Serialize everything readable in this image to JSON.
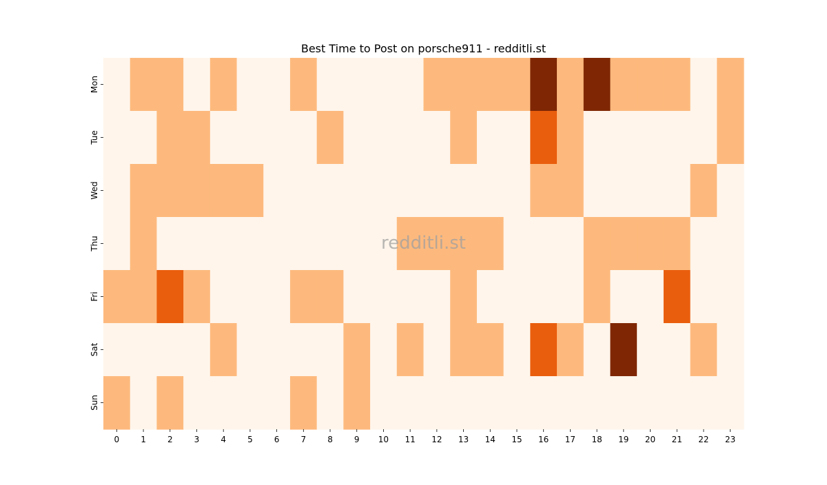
{
  "chart_data": {
    "type": "heatmap",
    "title": "Best Time to Post on porsche911 - redditli.st",
    "xlabel": "",
    "ylabel": "",
    "watermark": "redditli.st",
    "x_categories": [
      "0",
      "1",
      "2",
      "3",
      "4",
      "5",
      "6",
      "7",
      "8",
      "9",
      "10",
      "11",
      "12",
      "13",
      "14",
      "15",
      "16",
      "17",
      "18",
      "19",
      "20",
      "21",
      "22",
      "23"
    ],
    "y_categories": [
      "Mon",
      "Tue",
      "Wed",
      "Thu",
      "Fri",
      "Sat",
      "Sun"
    ],
    "values": [
      [
        0,
        1,
        1,
        0,
        1,
        0,
        0,
        1,
        0,
        0,
        0,
        0,
        1,
        1,
        1,
        1,
        3,
        1,
        3,
        1,
        1,
        1,
        0,
        1
      ],
      [
        0,
        0,
        1,
        1,
        0,
        0,
        0,
        0,
        1,
        0,
        0,
        0,
        0,
        1,
        0,
        0,
        2,
        1,
        0,
        0,
        0,
        0,
        0,
        1
      ],
      [
        0,
        1,
        1,
        1,
        1,
        1,
        0,
        0,
        0,
        0,
        0,
        0,
        0,
        0,
        0,
        0,
        1,
        1,
        0,
        0,
        0,
        0,
        1,
        0
      ],
      [
        0,
        1,
        0,
        0,
        0,
        0,
        0,
        0,
        0,
        0,
        0,
        1,
        1,
        1,
        1,
        0,
        0,
        0,
        1,
        1,
        1,
        1,
        0,
        0
      ],
      [
        1,
        1,
        2,
        1,
        0,
        0,
        0,
        1,
        1,
        0,
        0,
        0,
        0,
        1,
        0,
        0,
        0,
        0,
        1,
        0,
        0,
        2,
        0,
        0
      ],
      [
        0,
        0,
        0,
        0,
        1,
        0,
        0,
        0,
        0,
        1,
        0,
        1,
        0,
        1,
        1,
        0,
        2,
        1,
        0,
        3,
        0,
        0,
        1,
        0
      ],
      [
        1,
        0,
        1,
        0,
        0,
        0,
        0,
        1,
        0,
        1,
        0,
        0,
        0,
        0,
        0,
        0,
        0,
        0,
        0,
        0,
        0,
        0,
        0,
        0
      ]
    ],
    "color_scale": {
      "0": "#fff5eb",
      "1": "#fdb97d",
      "2": "#e95e0d",
      "3": "#7f2704"
    },
    "grid": false,
    "legend": "none"
  }
}
